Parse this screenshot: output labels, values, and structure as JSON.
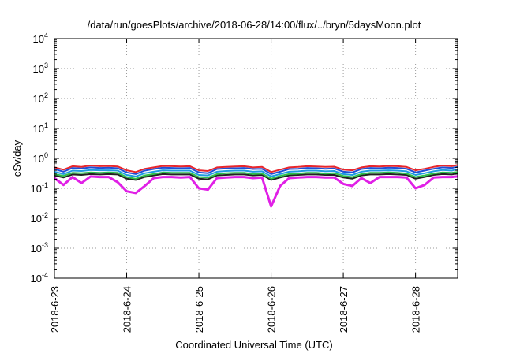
{
  "chart_data": {
    "type": "line",
    "title": "/data/run/goesPlots/archive/2018-06-28/14:00/flux/../bryn/5daysMoon.plot",
    "xlabel": "Coordinated Universal Time (UTC)",
    "ylabel": "cSv/day",
    "y_scale": "log",
    "ylim": [
      0.0001,
      10000
    ],
    "y_ticks": [
      {
        "value": 0.0001,
        "base": "10",
        "exp": "-4"
      },
      {
        "value": 0.001,
        "base": "10",
        "exp": "-3"
      },
      {
        "value": 0.01,
        "base": "10",
        "exp": "-2"
      },
      {
        "value": 0.1,
        "base": "10",
        "exp": "-1"
      },
      {
        "value": 1,
        "base": "10",
        "exp": "0"
      },
      {
        "value": 10,
        "base": "10",
        "exp": "1"
      },
      {
        "value": 100,
        "base": "10",
        "exp": "2"
      },
      {
        "value": 1000,
        "base": "10",
        "exp": "3"
      },
      {
        "value": 10000,
        "base": "10",
        "exp": "4"
      }
    ],
    "xlim": [
      "2018-06-23T00:00",
      "2018-06-28T14:00"
    ],
    "x_ticks": [
      {
        "value": "2018-06-23T00:00",
        "label": "2018-6-23"
      },
      {
        "value": "2018-06-24T00:00",
        "label": "2018-6-24"
      },
      {
        "value": "2018-06-25T00:00",
        "label": "2018-6-25"
      },
      {
        "value": "2018-06-26T00:00",
        "label": "2018-6-26"
      },
      {
        "value": "2018-06-27T00:00",
        "label": "2018-6-27"
      },
      {
        "value": "2018-06-28T00:00",
        "label": "2018-6-28"
      }
    ],
    "grid": true,
    "legend": "none",
    "x": [
      "2018-06-23T00:00",
      "2018-06-23T03:00",
      "2018-06-23T06:00",
      "2018-06-23T09:00",
      "2018-06-23T12:00",
      "2018-06-23T15:00",
      "2018-06-23T18:00",
      "2018-06-23T21:00",
      "2018-06-24T00:00",
      "2018-06-24T03:00",
      "2018-06-24T06:00",
      "2018-06-24T09:00",
      "2018-06-24T12:00",
      "2018-06-24T15:00",
      "2018-06-24T18:00",
      "2018-06-24T21:00",
      "2018-06-25T00:00",
      "2018-06-25T03:00",
      "2018-06-25T06:00",
      "2018-06-25T09:00",
      "2018-06-25T12:00",
      "2018-06-25T15:00",
      "2018-06-25T18:00",
      "2018-06-25T21:00",
      "2018-06-26T00:00",
      "2018-06-26T03:00",
      "2018-06-26T06:00",
      "2018-06-26T09:00",
      "2018-06-26T12:00",
      "2018-06-26T15:00",
      "2018-06-26T18:00",
      "2018-06-26T21:00",
      "2018-06-27T00:00",
      "2018-06-27T03:00",
      "2018-06-27T06:00",
      "2018-06-27T09:00",
      "2018-06-27T12:00",
      "2018-06-27T15:00",
      "2018-06-27T18:00",
      "2018-06-27T21:00",
      "2018-06-28T00:00",
      "2018-06-28T03:00",
      "2018-06-28T06:00",
      "2018-06-28T09:00",
      "2018-06-28T12:00",
      "2018-06-28T14:00"
    ],
    "series": [
      {
        "color": "#e8262c",
        "values": [
          0.5,
          0.42,
          0.55,
          0.52,
          0.58,
          0.55,
          0.56,
          0.54,
          0.4,
          0.35,
          0.45,
          0.5,
          0.56,
          0.55,
          0.54,
          0.55,
          0.4,
          0.38,
          0.5,
          0.52,
          0.54,
          0.55,
          0.5,
          0.52,
          0.35,
          0.42,
          0.5,
          0.52,
          0.55,
          0.54,
          0.52,
          0.53,
          0.42,
          0.4,
          0.5,
          0.55,
          0.54,
          0.56,
          0.55,
          0.52,
          0.4,
          0.45,
          0.52,
          0.58,
          0.55,
          0.6
        ]
      },
      {
        "color": "#1f4fd6",
        "values": [
          0.44,
          0.36,
          0.48,
          0.46,
          0.5,
          0.48,
          0.49,
          0.47,
          0.34,
          0.3,
          0.39,
          0.44,
          0.49,
          0.48,
          0.47,
          0.48,
          0.34,
          0.32,
          0.44,
          0.46,
          0.47,
          0.48,
          0.44,
          0.45,
          0.3,
          0.36,
          0.44,
          0.45,
          0.48,
          0.47,
          0.45,
          0.46,
          0.36,
          0.34,
          0.44,
          0.48,
          0.47,
          0.49,
          0.48,
          0.45,
          0.34,
          0.39,
          0.45,
          0.5,
          0.48,
          0.52
        ]
      },
      {
        "color": "#1e9be0",
        "values": [
          0.36,
          0.3,
          0.39,
          0.38,
          0.41,
          0.4,
          0.4,
          0.39,
          0.28,
          0.25,
          0.32,
          0.36,
          0.4,
          0.39,
          0.39,
          0.39,
          0.28,
          0.27,
          0.36,
          0.38,
          0.39,
          0.39,
          0.36,
          0.37,
          0.25,
          0.3,
          0.36,
          0.37,
          0.39,
          0.39,
          0.37,
          0.38,
          0.3,
          0.28,
          0.36,
          0.39,
          0.39,
          0.4,
          0.39,
          0.37,
          0.28,
          0.32,
          0.37,
          0.41,
          0.39,
          0.43
        ]
      },
      {
        "color": "#2fbf4a",
        "values": [
          0.3,
          0.26,
          0.33,
          0.32,
          0.34,
          0.33,
          0.34,
          0.33,
          0.24,
          0.21,
          0.27,
          0.3,
          0.34,
          0.33,
          0.33,
          0.33,
          0.24,
          0.23,
          0.3,
          0.32,
          0.33,
          0.33,
          0.3,
          0.31,
          0.21,
          0.26,
          0.3,
          0.31,
          0.33,
          0.33,
          0.31,
          0.32,
          0.26,
          0.24,
          0.3,
          0.33,
          0.33,
          0.34,
          0.33,
          0.31,
          0.24,
          0.27,
          0.31,
          0.34,
          0.33,
          0.35
        ]
      },
      {
        "color": "#222222",
        "values": [
          0.27,
          0.23,
          0.29,
          0.28,
          0.3,
          0.29,
          0.3,
          0.29,
          0.21,
          0.19,
          0.24,
          0.27,
          0.3,
          0.29,
          0.29,
          0.29,
          0.21,
          0.2,
          0.27,
          0.28,
          0.29,
          0.29,
          0.27,
          0.28,
          0.19,
          0.23,
          0.27,
          0.28,
          0.29,
          0.29,
          0.28,
          0.28,
          0.23,
          0.21,
          0.27,
          0.29,
          0.29,
          0.3,
          0.29,
          0.28,
          0.21,
          0.24,
          0.28,
          0.3,
          0.29,
          0.31
        ]
      },
      {
        "color": "#e020e6",
        "values": [
          0.22,
          0.13,
          0.24,
          0.15,
          0.25,
          0.24,
          0.24,
          0.16,
          0.08,
          0.07,
          0.12,
          0.22,
          0.24,
          0.24,
          0.23,
          0.24,
          0.1,
          0.09,
          0.22,
          0.23,
          0.24,
          0.24,
          0.22,
          0.23,
          0.025,
          0.12,
          0.22,
          0.23,
          0.24,
          0.24,
          0.23,
          0.23,
          0.14,
          0.12,
          0.22,
          0.15,
          0.24,
          0.24,
          0.24,
          0.23,
          0.1,
          0.13,
          0.23,
          0.24,
          0.24,
          0.25
        ]
      }
    ]
  }
}
